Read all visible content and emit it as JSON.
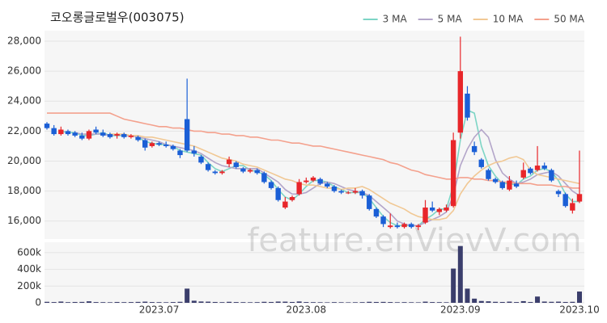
{
  "chart_data": {
    "type": "candlestick",
    "title": "코오롱글로벌우(003075)",
    "watermark": "feature.enVievV.com",
    "categories": [
      null,
      null,
      null,
      null,
      null,
      null,
      null,
      null,
      null,
      null,
      null,
      null,
      null,
      null,
      null,
      null,
      "2023.07",
      null,
      null,
      null,
      null,
      null,
      null,
      null,
      null,
      null,
      null,
      null,
      null,
      null,
      null,
      null,
      null,
      null,
      null,
      null,
      null,
      "2023.08",
      null,
      null,
      null,
      null,
      null,
      null,
      null,
      null,
      null,
      null,
      null,
      null,
      null,
      null,
      null,
      null,
      null,
      null,
      null,
      null,
      null,
      "2023.09",
      null,
      null,
      null,
      null,
      null,
      null,
      null,
      null,
      null,
      null,
      null,
      null,
      null,
      null,
      null,
      null,
      "2023.10"
    ],
    "ohlc": [
      [
        22500,
        22600,
        22100,
        22200
      ],
      [
        22200,
        22400,
        21700,
        21800
      ],
      [
        21800,
        22300,
        21700,
        22100
      ],
      [
        22000,
        22100,
        21700,
        21800
      ],
      [
        21900,
        22000,
        21600,
        21700
      ],
      [
        21700,
        21900,
        21400,
        21500
      ],
      [
        21500,
        22100,
        21400,
        22000
      ],
      [
        22100,
        22300,
        21800,
        21900
      ],
      [
        21900,
        22100,
        21600,
        21700
      ],
      [
        21800,
        21900,
        21500,
        21600
      ],
      [
        21700,
        21900,
        21500,
        21800
      ],
      [
        21800,
        21900,
        21500,
        21600
      ],
      [
        21600,
        21800,
        21500,
        21700
      ],
      [
        21600,
        21700,
        21300,
        21400
      ],
      [
        21400,
        21500,
        20700,
        20900
      ],
      [
        21000,
        21300,
        20900,
        21200
      ],
      [
        21200,
        21300,
        21000,
        21100
      ],
      [
        21100,
        21300,
        20900,
        21000
      ],
      [
        21000,
        21100,
        20700,
        20800
      ],
      [
        20700,
        20800,
        20200,
        20400
      ],
      [
        22800,
        25500,
        20600,
        20700
      ],
      [
        20700,
        21000,
        20300,
        20500
      ],
      [
        20300,
        20400,
        19800,
        19900
      ],
      [
        19800,
        19900,
        19300,
        19400
      ],
      [
        19300,
        19400,
        19100,
        19200
      ],
      [
        19200,
        19400,
        19100,
        19300
      ],
      [
        19800,
        20300,
        19600,
        20100
      ],
      [
        19900,
        20000,
        19500,
        19600
      ],
      [
        19500,
        19600,
        19200,
        19300
      ],
      [
        19300,
        19500,
        19200,
        19400
      ],
      [
        19400,
        19500,
        19100,
        19200
      ],
      [
        19200,
        19300,
        18500,
        18600
      ],
      [
        18600,
        18700,
        18100,
        18200
      ],
      [
        18200,
        18300,
        17300,
        17400
      ],
      [
        16900,
        17600,
        16800,
        17300
      ],
      [
        17400,
        17700,
        17300,
        17600
      ],
      [
        17800,
        18800,
        17700,
        18600
      ],
      [
        18600,
        18900,
        18500,
        18700
      ],
      [
        18700,
        19000,
        18600,
        18900
      ],
      [
        18800,
        18900,
        18400,
        18500
      ],
      [
        18500,
        18600,
        18200,
        18300
      ],
      [
        18300,
        18400,
        17900,
        18000
      ],
      [
        18000,
        18100,
        17800,
        17900
      ],
      [
        17900,
        18000,
        17800,
        17900
      ],
      [
        17900,
        18200,
        17800,
        18000
      ],
      [
        18000,
        18100,
        17500,
        17700
      ],
      [
        17700,
        17800,
        16700,
        16800
      ],
      [
        16800,
        16900,
        16200,
        16300
      ],
      [
        16300,
        16400,
        15600,
        15800
      ],
      [
        15600,
        16500,
        15500,
        15700
      ],
      [
        15700,
        15900,
        15500,
        15600
      ],
      [
        15600,
        15900,
        15500,
        15800
      ],
      [
        15800,
        15900,
        15500,
        15600
      ],
      [
        15600,
        15800,
        15400,
        15700
      ],
      [
        15900,
        17400,
        15800,
        16900
      ],
      [
        16900,
        17300,
        16600,
        16700
      ],
      [
        16600,
        16900,
        16400,
        16800
      ],
      [
        16700,
        17100,
        16600,
        16900
      ],
      [
        17000,
        21900,
        16900,
        21400
      ],
      [
        21900,
        28300,
        21500,
        26000
      ],
      [
        24500,
        25000,
        22700,
        22900
      ],
      [
        21000,
        21300,
        20400,
        20600
      ],
      [
        20100,
        20200,
        19500,
        19600
      ],
      [
        19400,
        19500,
        18700,
        18800
      ],
      [
        18800,
        18900,
        18500,
        18600
      ],
      [
        18600,
        18700,
        18100,
        18200
      ],
      [
        18100,
        19000,
        18000,
        18700
      ],
      [
        18500,
        18700,
        18200,
        18300
      ],
      [
        18900,
        19900,
        18800,
        19400
      ],
      [
        19500,
        19600,
        19100,
        19200
      ],
      [
        19400,
        21000,
        19300,
        19700
      ],
      [
        19700,
        19900,
        19400,
        19500
      ],
      [
        19400,
        19500,
        18600,
        18700
      ],
      [
        18000,
        18100,
        17600,
        17800
      ],
      [
        17800,
        17900,
        16900,
        17000
      ],
      [
        16700,
        17500,
        16500,
        17200
      ],
      [
        17300,
        20700,
        17200,
        17800
      ]
    ],
    "up_color": "#e8262a",
    "down_color": "#1b5fd6",
    "series": [
      {
        "name": "3 MA",
        "color": "#7dd5c5",
        "values": [
          null,
          null,
          22000,
          21900,
          21900,
          21700,
          21700,
          21800,
          21900,
          21700,
          21700,
          21700,
          21700,
          21600,
          21300,
          21200,
          21100,
          21100,
          21000,
          20700,
          20600,
          20500,
          20400,
          19900,
          19500,
          19300,
          19500,
          19700,
          19700,
          19400,
          19300,
          19100,
          18700,
          18100,
          17600,
          17400,
          17800,
          18300,
          18700,
          18700,
          18600,
          18300,
          18100,
          17900,
          17900,
          17900,
          17500,
          16900,
          16300,
          15900,
          15700,
          15700,
          15700,
          15700,
          16100,
          16400,
          16800,
          16800,
          18400,
          21400,
          23400,
          23200,
          21000,
          19700,
          19000,
          18500,
          18500,
          18400,
          18800,
          19000,
          19400,
          19500,
          19300,
          18700,
          17800,
          17300,
          17300
        ]
      },
      {
        "name": "5 MA",
        "color": "#b3a5c9",
        "values": [
          null,
          null,
          null,
          null,
          21900,
          21800,
          21800,
          21800,
          21800,
          21700,
          21800,
          21700,
          21700,
          21600,
          21500,
          21400,
          21300,
          21100,
          21000,
          20900,
          20800,
          20700,
          20500,
          20200,
          19900,
          19700,
          19600,
          19500,
          19500,
          19500,
          19500,
          19200,
          18900,
          18600,
          18100,
          17800,
          17800,
          17900,
          18200,
          18500,
          18600,
          18500,
          18300,
          18100,
          18000,
          17900,
          17700,
          17300,
          16900,
          16500,
          16000,
          15800,
          15700,
          15700,
          15900,
          16100,
          16300,
          16600,
          17700,
          19700,
          20800,
          21600,
          22100,
          21600,
          20100,
          19200,
          18800,
          18500,
          18600,
          18800,
          19100,
          19200,
          19300,
          19000,
          18500,
          18000,
          17700
        ]
      },
      {
        "name": "10 MA",
        "color": "#f1c894",
        "values": [
          null,
          null,
          null,
          null,
          null,
          null,
          null,
          null,
          null,
          21800,
          21800,
          21800,
          21700,
          21700,
          21600,
          21600,
          21500,
          21400,
          21300,
          21200,
          21100,
          21000,
          20800,
          20600,
          20400,
          20200,
          20100,
          20000,
          19800,
          19700,
          19600,
          19400,
          19200,
          19000,
          18800,
          18700,
          18500,
          18400,
          18400,
          18300,
          18200,
          18200,
          18100,
          18200,
          18200,
          18300,
          18100,
          17800,
          17500,
          17200,
          17000,
          16800,
          16500,
          16300,
          16200,
          16100,
          16100,
          16200,
          16700,
          17800,
          18500,
          19000,
          19400,
          19700,
          19900,
          20000,
          20200,
          20300,
          20100,
          19400,
          19100,
          19000,
          18900,
          18800,
          18700,
          18600,
          18500
        ]
      },
      {
        "name": "50 MA",
        "color": "#f4a18d",
        "values": [
          23200,
          23200,
          23200,
          23200,
          23200,
          23200,
          23200,
          23200,
          23200,
          23200,
          23000,
          22800,
          22700,
          22600,
          22500,
          22400,
          22300,
          22300,
          22200,
          22200,
          22100,
          22000,
          22000,
          21900,
          21900,
          21800,
          21800,
          21700,
          21700,
          21600,
          21600,
          21500,
          21400,
          21400,
          21300,
          21200,
          21200,
          21100,
          21000,
          21000,
          20900,
          20800,
          20700,
          20600,
          20500,
          20400,
          20300,
          20200,
          20100,
          19900,
          19800,
          19600,
          19400,
          19300,
          19100,
          19000,
          18900,
          18800,
          18800,
          18900,
          18900,
          18800,
          18800,
          18700,
          18700,
          18600,
          18600,
          18500,
          18500,
          18500,
          18400,
          18400,
          18400,
          18300,
          18300,
          18200,
          18200
        ]
      }
    ],
    "ylim": [
      14800,
      28700
    ],
    "yticks": [
      {
        "value": 16000,
        "label": "16,000"
      },
      {
        "value": 18000,
        "label": "18,000"
      },
      {
        "value": 20000,
        "label": "20,000"
      },
      {
        "value": 22000,
        "label": "22,000"
      },
      {
        "value": 24000,
        "label": "24,000"
      },
      {
        "value": 26000,
        "label": "26,000"
      },
      {
        "value": 28000,
        "label": "28,000"
      }
    ],
    "grid": true,
    "legend": "top-right",
    "volume": {
      "color": "#3b3e6c",
      "values": [
        12000,
        9000,
        15000,
        8000,
        10000,
        11000,
        18000,
        9000,
        8000,
        7000,
        10000,
        8000,
        9000,
        11000,
        14000,
        9000,
        8000,
        7000,
        9000,
        12000,
        170000,
        25000,
        16000,
        14000,
        10000,
        8000,
        12000,
        9000,
        8000,
        7000,
        8000,
        12000,
        10000,
        15000,
        14000,
        10000,
        16000,
        9000,
        8000,
        7000,
        6000,
        8000,
        7000,
        6000,
        7000,
        8000,
        12000,
        10000,
        11000,
        9000,
        7000,
        8000,
        7000,
        6000,
        14000,
        9000,
        8000,
        7000,
        410000,
        680000,
        170000,
        50000,
        22000,
        18000,
        12000,
        10000,
        14000,
        9000,
        20000,
        10000,
        75000,
        15000,
        12000,
        14000,
        10000,
        12000,
        135000
      ],
      "ylim": [
        0,
        725000
      ],
      "yticks": [
        0,
        {
          "value": 200000,
          "label": "200k"
        },
        {
          "value": 400000,
          "label": "400k"
        },
        {
          "value": 600000,
          "label": "600k"
        }
      ]
    }
  }
}
